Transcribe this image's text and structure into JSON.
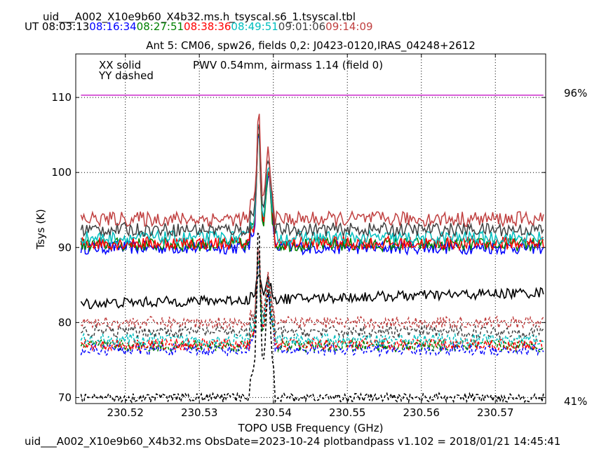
{
  "header": {
    "title": "uid___A002_X10e9b60_X4b32.ms.h_tsyscal.s6_1.tsyscal.tbl",
    "ut_label": "UT",
    "times": [
      {
        "text": "08:03:13",
        "color": "#000000"
      },
      {
        "text": "08:16:34",
        "color": "#0000ff"
      },
      {
        "text": "08:27:51",
        "color": "#008000"
      },
      {
        "text": "08:38:36",
        "color": "#ff0000"
      },
      {
        "text": "08:49:51",
        "color": "#00bfbf"
      },
      {
        "text": "09:01:06",
        "color": "#404040"
      },
      {
        "text": "09:14:09",
        "color": "#c04040"
      }
    ]
  },
  "footer": "uid___A002_X10e9b60_X4b32.ms  ObsDate=2023-10-24   plotbandpass v1.102 = 2018/01/21 14:45:41",
  "chart_data": {
    "type": "line",
    "title": "Ant 5: CM06,  spw26,  fields 0,2: J0423-0120,IRAS_04248+2612",
    "xlabel": "TOPO USB Frequency (GHz)",
    "ylabel": "Tsys (K)",
    "xlim": [
      230.5133,
      230.5768
    ],
    "ylim": [
      69.2,
      115.8
    ],
    "xticks": [
      230.52,
      230.53,
      230.54,
      230.55,
      230.56,
      230.57
    ],
    "xtick_labels": [
      "230.52",
      "230.53",
      "230.54",
      "230.55",
      "230.56",
      "230.57"
    ],
    "yticks": [
      70,
      80,
      90,
      100,
      110
    ],
    "ytick_labels": [
      "70",
      "80",
      "90",
      "100",
      "110"
    ],
    "grid": true,
    "legend_text": [
      "XX solid",
      "YY dashed"
    ],
    "annotation": {
      "text": "PWV 0.54mm, airmass 1.14 (field 0)",
      "color": "#c000c0"
    },
    "transmission": {
      "top_label": "96%",
      "bottom_label": "41%",
      "color": "#c000c0",
      "level_tsys": 110.3
    },
    "x_range": [
      230.514,
      230.5765
    ],
    "line_center_ghz": 230.538,
    "series": [
      {
        "time": "08:16:34",
        "pol": "XX",
        "color": "#0000ff",
        "baseline": 90.0,
        "peak": 104.5,
        "noise": 0.45
      },
      {
        "time": "08:27:51",
        "pol": "XX",
        "color": "#008000",
        "baseline": 90.4,
        "peak": 104.6,
        "noise": 0.45
      },
      {
        "time": "08:38:36",
        "pol": "XX",
        "color": "#ff0000",
        "baseline": 90.6,
        "peak": 105.0,
        "noise": 0.45
      },
      {
        "time": "08:49:51",
        "pol": "XX",
        "color": "#00bfbf",
        "baseline": 91.3,
        "peak": 105.5,
        "noise": 0.45
      },
      {
        "time": "09:01:06",
        "pol": "XX",
        "color": "#404040",
        "baseline": 92.4,
        "peak": 106.0,
        "noise": 0.45
      },
      {
        "time": "09:14:09",
        "pol": "XX",
        "color": "#c04040",
        "baseline": 93.8,
        "peak": 106.6,
        "noise": 0.5
      },
      {
        "time": "08:03:13",
        "pol": "XX",
        "color": "#000000",
        "baseline": 82.5,
        "end": 84.0,
        "peak": 86.0,
        "noise": 0.35
      },
      {
        "time": "08:16:34",
        "pol": "YY",
        "color": "#0000ff",
        "baseline": 76.4,
        "peak": 87.0,
        "noise": 0.4
      },
      {
        "time": "08:27:51",
        "pol": "YY",
        "color": "#008000",
        "baseline": 76.9,
        "peak": 87.5,
        "noise": 0.4
      },
      {
        "time": "08:38:36",
        "pol": "YY",
        "color": "#ff0000",
        "baseline": 77.1,
        "peak": 88.0,
        "noise": 0.4
      },
      {
        "time": "08:49:51",
        "pol": "YY",
        "color": "#00bfbf",
        "baseline": 77.7,
        "peak": 88.0,
        "noise": 0.4
      },
      {
        "time": "09:01:06",
        "pol": "YY",
        "color": "#404040",
        "baseline": 78.8,
        "peak": 88.5,
        "noise": 0.4
      },
      {
        "time": "09:14:09",
        "pol": "YY",
        "color": "#c04040",
        "baseline": 80.0,
        "peak": 89.0,
        "noise": 0.4
      },
      {
        "time": "08:03:13",
        "pol": "YY",
        "color": "#000000",
        "baseline": 70.0,
        "peak": 91.0,
        "noise": 0.3
      }
    ]
  }
}
